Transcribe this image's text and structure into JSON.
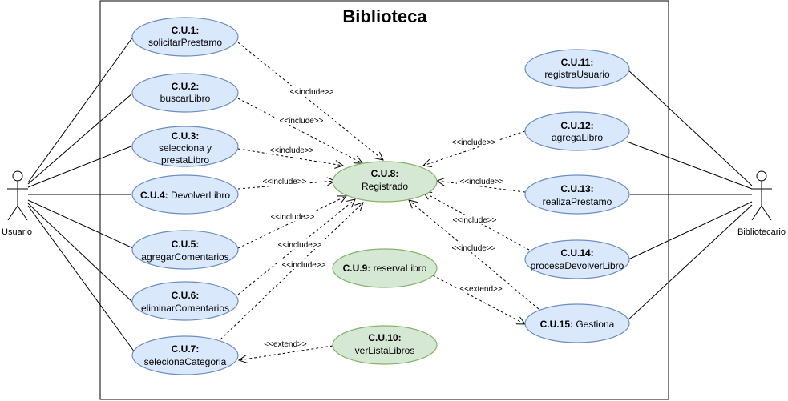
{
  "system": {
    "title": "Biblioteca"
  },
  "actors": {
    "usuario": "Usuario",
    "bibliotecario": "Bibliotecario"
  },
  "use_cases": {
    "cu1": {
      "id": "C.U.1:",
      "name": "solicitarPrestamo"
    },
    "cu2": {
      "id": "C.U.2:",
      "name": "buscarLibro"
    },
    "cu3": {
      "id": "C.U.3:",
      "name1": "selecciona y",
      "name2": "prestaLibro"
    },
    "cu4": {
      "id": "C.U.4:",
      "name": "DevolverLibro"
    },
    "cu5": {
      "id": "C.U.5:",
      "name": "agregarComentarios"
    },
    "cu6": {
      "id": "C.U.6:",
      "name": "eliminarComentarios"
    },
    "cu7": {
      "id": "C.U.7:",
      "name": "selecionaCategoria"
    },
    "cu8": {
      "id": "C.U.8:",
      "name": "Registrado"
    },
    "cu9": {
      "id": "C.U.9:",
      "name": "reservaLibro"
    },
    "cu10": {
      "id": "C.U.10:",
      "name": "verListaLibros"
    },
    "cu11": {
      "id": "C.U.11:",
      "name": "registraUsuario"
    },
    "cu12": {
      "id": "C.U.12:",
      "name": "agregaLibro"
    },
    "cu13": {
      "id": "C.U.13:",
      "name": "realizaPrestamo"
    },
    "cu14": {
      "id": "C.U.14:",
      "name": "procesaDevolverLibro"
    },
    "cu15": {
      "id": "C.U.15:",
      "name": "Gestiona"
    }
  },
  "stereotypes": {
    "include": "<<include>>",
    "extend": "<<extend>>"
  },
  "colors": {
    "blue_fill": "#dae8fc",
    "blue_stroke": "#6c8ebf",
    "green_fill": "#d5e8d4",
    "green_stroke": "#82b366"
  }
}
